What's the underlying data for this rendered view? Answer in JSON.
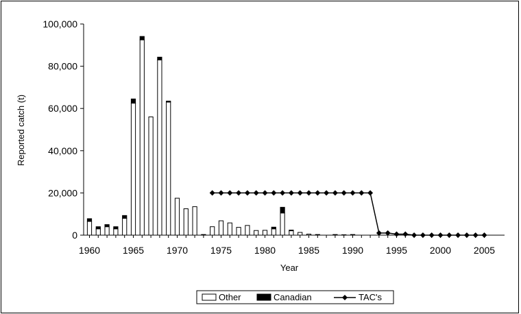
{
  "chart_data": {
    "type": "bar",
    "title": "",
    "xlabel": "Year",
    "ylabel": "Reported catch (t)",
    "ylim": [
      0,
      100000
    ],
    "yticks": [
      0,
      20000,
      40000,
      60000,
      80000,
      100000
    ],
    "ytick_labels": [
      "0",
      "20,000",
      "40,000",
      "60,000",
      "80,000",
      "100,000"
    ],
    "xlim": [
      1960,
      2005
    ],
    "xticks": [
      1960,
      1965,
      1970,
      1975,
      1980,
      1985,
      1990,
      1995,
      2000,
      2005
    ],
    "xtick_labels": [
      "1960",
      "1965",
      "1970",
      "1975",
      "1980",
      "1985",
      "1990",
      "1995",
      "2000",
      "2005"
    ],
    "stacked": true,
    "legend": {
      "placement": "bottom-center",
      "border": true
    },
    "years": [
      1960,
      1961,
      1962,
      1963,
      1964,
      1965,
      1966,
      1967,
      1968,
      1969,
      1970,
      1971,
      1972,
      1973,
      1974,
      1975,
      1976,
      1977,
      1978,
      1979,
      1980,
      1981,
      1982,
      1983,
      1984,
      1985,
      1986,
      1987,
      1988,
      1989,
      1990,
      1991,
      1992,
      1993,
      1994,
      1995,
      1996,
      1997,
      1998,
      1999,
      2000,
      2001,
      2002,
      2003,
      2004,
      2005
    ],
    "series": [
      {
        "name": "Other",
        "kind": "bar",
        "fill": "#ffffff",
        "values": [
          6500,
          3000,
          4000,
          3000,
          8000,
          62500,
          92500,
          56000,
          83000,
          63000,
          17500,
          12500,
          13500,
          300,
          4000,
          6800,
          5800,
          3700,
          4600,
          2200,
          2300,
          3000,
          10500,
          2100,
          1300,
          500,
          300,
          0,
          300,
          200,
          300,
          0,
          0,
          0,
          0,
          0,
          0,
          0,
          0,
          0,
          0,
          0,
          0,
          0,
          0,
          0
        ]
      },
      {
        "name": "Canadian",
        "kind": "bar",
        "fill": "#000000",
        "values": [
          1300,
          1000,
          1000,
          1000,
          1300,
          2000,
          1600,
          0,
          1300,
          500,
          0,
          0,
          0,
          0,
          0,
          0,
          0,
          0,
          0,
          0,
          0,
          800,
          2700,
          300,
          0,
          0,
          0,
          0,
          0,
          0,
          0,
          0,
          0,
          0,
          0,
          0,
          0,
          0,
          0,
          0,
          0,
          0,
          0,
          0,
          0,
          0
        ]
      },
      {
        "name": "TAC's",
        "kind": "line",
        "color": "#000000",
        "marker": "diamond",
        "points": [
          [
            1974,
            20000
          ],
          [
            1975,
            20000
          ],
          [
            1976,
            20000
          ],
          [
            1977,
            20000
          ],
          [
            1978,
            20000
          ],
          [
            1979,
            20000
          ],
          [
            1980,
            20000
          ],
          [
            1981,
            20000
          ],
          [
            1982,
            20000
          ],
          [
            1983,
            20000
          ],
          [
            1984,
            20000
          ],
          [
            1985,
            20000
          ],
          [
            1986,
            20000
          ],
          [
            1987,
            20000
          ],
          [
            1988,
            20000
          ],
          [
            1989,
            20000
          ],
          [
            1990,
            20000
          ],
          [
            1991,
            20000
          ],
          [
            1992,
            20000
          ],
          [
            1993,
            1000
          ],
          [
            1994,
            1000
          ],
          [
            1995,
            500
          ],
          [
            1996,
            500
          ],
          [
            1997,
            0
          ],
          [
            1998,
            0
          ],
          [
            1999,
            0
          ],
          [
            2000,
            0
          ],
          [
            2001,
            0
          ],
          [
            2002,
            0
          ],
          [
            2003,
            0
          ],
          [
            2004,
            0
          ],
          [
            2005,
            0
          ]
        ]
      }
    ]
  }
}
